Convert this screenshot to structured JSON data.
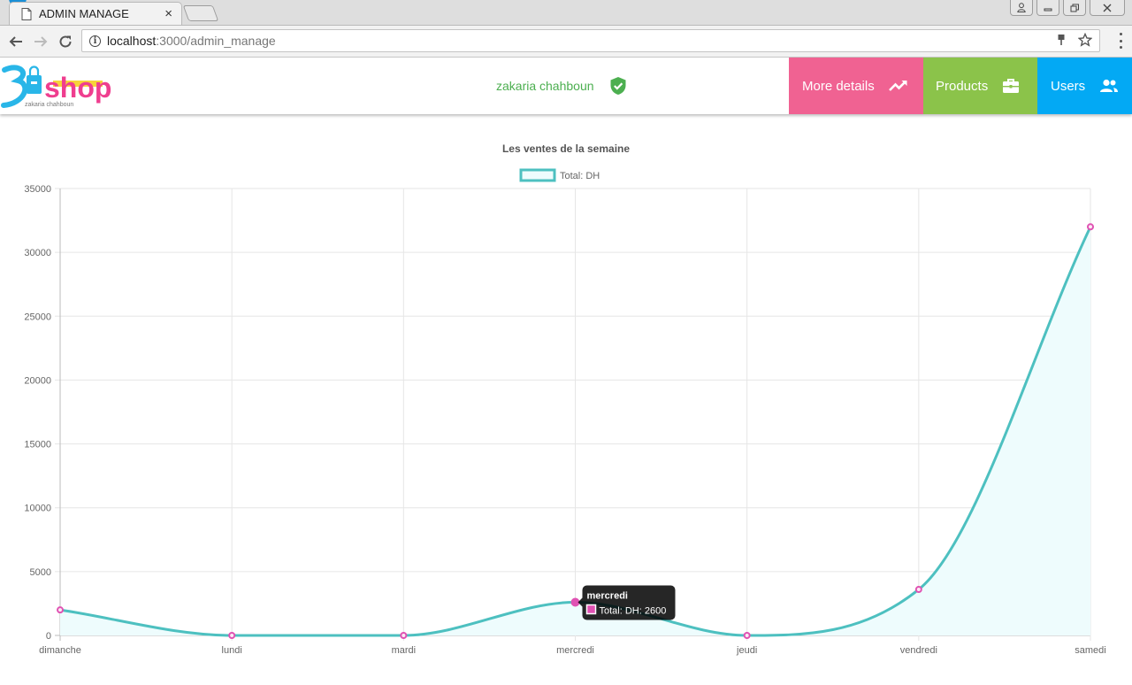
{
  "browser": {
    "tab_title": "ADMIN MANAGE",
    "tab_close": "×",
    "url_host": "localhost",
    "url_path": ":3000/admin_manage"
  },
  "app": {
    "logo_main": "shop",
    "logo_sub": "zakaria chahboun",
    "user_name": "zakaria chahboun",
    "nav": [
      {
        "label": "More details",
        "icon": "trending-up-icon",
        "color": "#f06292"
      },
      {
        "label": "Products",
        "icon": "briefcase-icon",
        "color": "#8bc34a"
      },
      {
        "label": "Users",
        "icon": "users-icon",
        "color": "#03a9f4"
      }
    ]
  },
  "chart_data": {
    "type": "line",
    "title": "Les ventes de la semaine",
    "categories": [
      "dimanche",
      "lundi",
      "mardi",
      "mercredi",
      "jeudi",
      "vendredi",
      "samedi"
    ],
    "series": [
      {
        "name": "Total: DH",
        "values": [
          2000,
          0,
          0,
          2600,
          0,
          3600,
          32000
        ],
        "line_color": "#4dc0c0",
        "point_color": "#e052b3",
        "fill_color": "#eefcfd"
      }
    ],
    "ylim": [
      0,
      35000
    ],
    "yticks": [
      0,
      5000,
      10000,
      15000,
      20000,
      25000,
      30000,
      35000
    ],
    "grid": true,
    "legend": "top",
    "tooltip": {
      "title": "mercredi",
      "label": "Total: DH: 2600"
    }
  }
}
